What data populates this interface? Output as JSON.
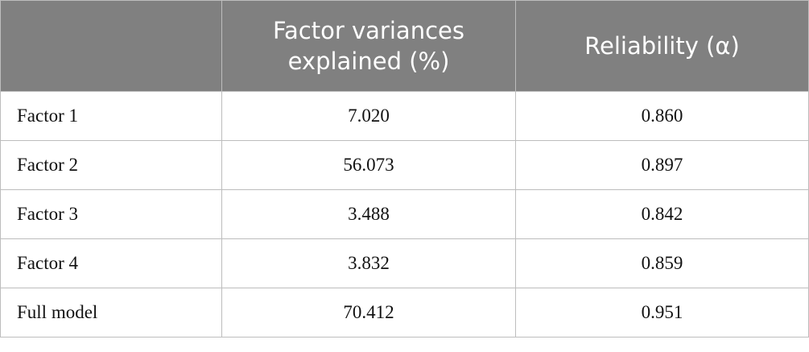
{
  "table": {
    "header": [
      "Factor variances explained (%)",
      "Reliability (α)"
    ],
    "rows": [
      [
        "Factor 1",
        "7.020",
        "0.860"
      ],
      [
        "Factor 2",
        "56.073",
        "0.897"
      ],
      [
        "Factor 3",
        "3.488",
        "0.842"
      ],
      [
        "Factor 4",
        "3.832",
        "0.859"
      ],
      [
        "Full model",
        "70.412",
        "0.951"
      ]
    ]
  }
}
